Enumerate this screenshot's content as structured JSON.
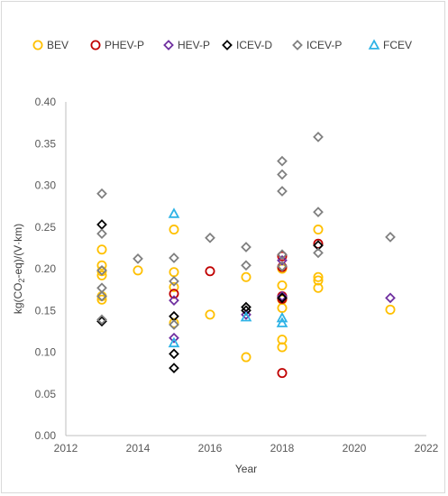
{
  "chart_data": {
    "type": "scatter",
    "xlabel": "Year",
    "ylabel_parts": [
      "kg(CO",
      "2",
      "-eq)/(V·km)"
    ],
    "xlim": [
      2012,
      2022
    ],
    "ylim": [
      0,
      0.4
    ],
    "x_ticks": [
      "2012",
      "2014",
      "2016",
      "2018",
      "2020",
      "2022"
    ],
    "y_ticks": [
      "0.00",
      "0.05",
      "0.10",
      "0.15",
      "0.20",
      "0.25",
      "0.30",
      "0.35",
      "0.40"
    ],
    "grid": false,
    "legend_position": "top",
    "series": [
      {
        "name": "BEV",
        "marker": "circle",
        "color": "#ffc000",
        "points": [
          [
            2013,
            0.223
          ],
          [
            2013,
            0.204
          ],
          [
            2013,
            0.197
          ],
          [
            2013,
            0.192
          ],
          [
            2013,
            0.167
          ],
          [
            2013,
            0.163
          ],
          [
            2014,
            0.198
          ],
          [
            2015,
            0.247
          ],
          [
            2015,
            0.196
          ],
          [
            2015,
            0.178
          ],
          [
            2015,
            0.135
          ],
          [
            2016,
            0.145
          ],
          [
            2017,
            0.19
          ],
          [
            2017,
            0.094
          ],
          [
            2018,
            0.2
          ],
          [
            2018,
            0.18
          ],
          [
            2018,
            0.163
          ],
          [
            2018,
            0.153
          ],
          [
            2018,
            0.115
          ],
          [
            2018,
            0.106
          ],
          [
            2019,
            0.247
          ],
          [
            2019,
            0.19
          ],
          [
            2019,
            0.186
          ],
          [
            2019,
            0.177
          ],
          [
            2021,
            0.151
          ]
        ]
      },
      {
        "name": "PHEV-P",
        "marker": "circle",
        "color": "#c00000",
        "points": [
          [
            2015,
            0.17
          ],
          [
            2016,
            0.197
          ],
          [
            2018,
            0.215
          ],
          [
            2018,
            0.202
          ],
          [
            2018,
            0.167
          ],
          [
            2018,
            0.164
          ],
          [
            2018,
            0.075
          ],
          [
            2019,
            0.23
          ]
        ]
      },
      {
        "name": "HEV-P",
        "marker": "diamond",
        "color": "#7030a0",
        "points": [
          [
            2015,
            0.162
          ],
          [
            2015,
            0.117
          ],
          [
            2017,
            0.145
          ],
          [
            2018,
            0.21
          ],
          [
            2018,
            0.167
          ],
          [
            2021,
            0.165
          ]
        ]
      },
      {
        "name": "ICEV-D",
        "marker": "diamond",
        "color": "#000000",
        "points": [
          [
            2013,
            0.253
          ],
          [
            2013,
            0.137
          ],
          [
            2015,
            0.143
          ],
          [
            2015,
            0.098
          ],
          [
            2015,
            0.081
          ],
          [
            2017,
            0.154
          ],
          [
            2017,
            0.15
          ],
          [
            2018,
            0.165
          ],
          [
            2019,
            0.228
          ]
        ]
      },
      {
        "name": "ICEV-P",
        "marker": "diamond",
        "color": "#808080",
        "points": [
          [
            2013,
            0.29
          ],
          [
            2013,
            0.242
          ],
          [
            2013,
            0.198
          ],
          [
            2013,
            0.177
          ],
          [
            2013,
            0.167
          ],
          [
            2013,
            0.139
          ],
          [
            2014,
            0.212
          ],
          [
            2015,
            0.213
          ],
          [
            2015,
            0.185
          ],
          [
            2015,
            0.133
          ],
          [
            2016,
            0.237
          ],
          [
            2017,
            0.226
          ],
          [
            2017,
            0.204
          ],
          [
            2018,
            0.329
          ],
          [
            2018,
            0.313
          ],
          [
            2018,
            0.293
          ],
          [
            2018,
            0.217
          ],
          [
            2018,
            0.203
          ],
          [
            2019,
            0.358
          ],
          [
            2019,
            0.268
          ],
          [
            2019,
            0.219
          ],
          [
            2021,
            0.238
          ]
        ]
      },
      {
        "name": "FCEV",
        "marker": "triangle",
        "color": "#2eb3e6",
        "points": [
          [
            2015,
            0.266
          ],
          [
            2015,
            0.111
          ],
          [
            2017,
            0.142
          ],
          [
            2018,
            0.141
          ],
          [
            2018,
            0.135
          ]
        ]
      }
    ]
  }
}
